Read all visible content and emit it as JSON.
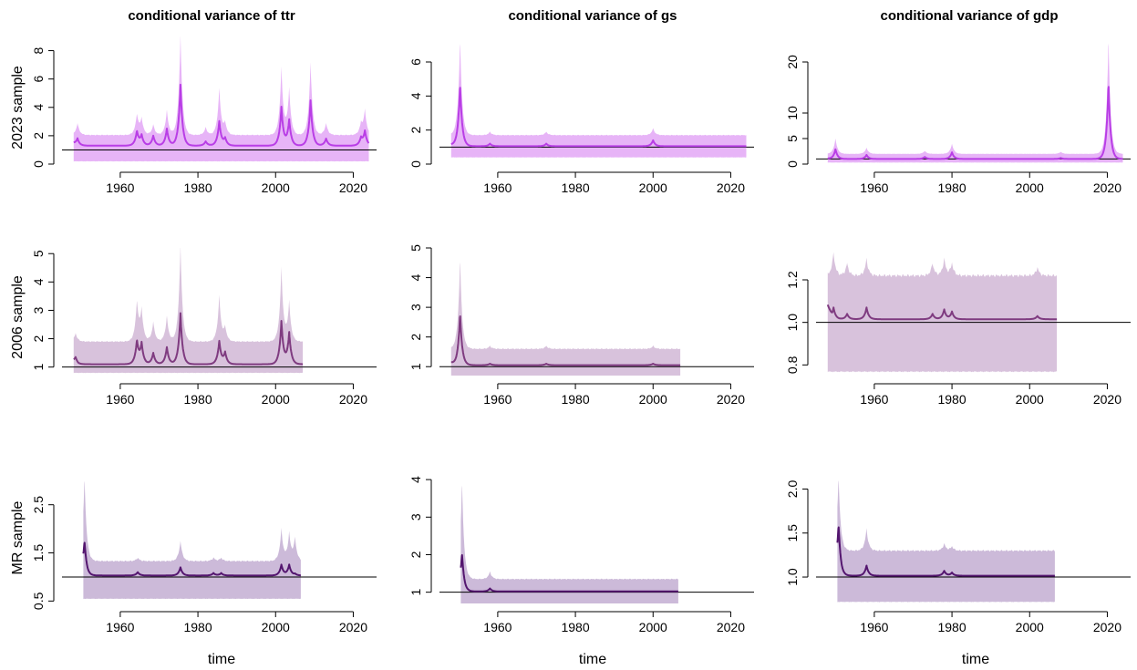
{
  "figure": {
    "column_titles": [
      "conditional variance of  ttr",
      "conditional variance of  gs",
      "conditional variance of  gdp"
    ],
    "row_labels": [
      "2023 sample",
      "2006 sample",
      "MR sample"
    ],
    "xlabel": "time"
  },
  "colors": {
    "2023 sample": {
      "line": "#b93ee6",
      "band": "#e7b4f7"
    },
    "2006 sample": {
      "line": "#7f3b80",
      "band": "#d8c2dc"
    },
    "MR sample": {
      "line": "#54166f",
      "band": "#ccbad9"
    },
    "reference_line": "#000000"
  },
  "chart_data": [
    {
      "id": "ttr-2023",
      "type": "area",
      "title": "conditional variance of  ttr",
      "row": "2023 sample",
      "x_range": [
        1948,
        2024
      ],
      "xlim": [
        1945,
        2026
      ],
      "ylim": [
        0,
        9
      ],
      "yticks": [
        0,
        2,
        4,
        6,
        8
      ],
      "yticklabels": [
        "0",
        "2",
        "4",
        "6",
        "8"
      ],
      "xticks": [
        1960,
        1980,
        2000,
        2020
      ],
      "xticklabels": [
        "1960",
        "1980",
        "2000",
        "2020"
      ],
      "reference_y": 1,
      "baseline": 1.3,
      "band_upper": 2.05,
      "band_lower": 0.2,
      "peaks": [
        [
          1949,
          1.8,
          2.9
        ],
        [
          1964.3,
          2.3,
          3.5
        ],
        [
          1965.5,
          2.0,
          3.2
        ],
        [
          1968.5,
          2.0,
          2.8
        ],
        [
          1972,
          2.5,
          3.8
        ],
        [
          1975.5,
          5.6,
          9.1
        ],
        [
          1982,
          1.6,
          2.6
        ],
        [
          1985.5,
          3.0,
          5.3
        ],
        [
          1987,
          1.8,
          2.9
        ],
        [
          2001.5,
          4.0,
          6.8
        ],
        [
          2003.5,
          3.1,
          5.3
        ],
        [
          2009,
          4.5,
          7.2
        ],
        [
          2013,
          1.8,
          2.9
        ],
        [
          2022,
          1.8,
          2.8
        ],
        [
          2023,
          2.3,
          3.8
        ]
      ],
      "series": [
        {
          "name": "",
          "kind": "median",
          "color": "#b93ee6"
        }
      ]
    },
    {
      "id": "gs-2023",
      "type": "area",
      "title": "conditional variance of  gs",
      "row": "2023 sample",
      "x_range": [
        1948,
        2024
      ],
      "xlim": [
        1945,
        2026
      ],
      "ylim": [
        0,
        7.5
      ],
      "yticks": [
        0,
        2,
        4,
        6
      ],
      "yticklabels": [
        "0",
        "2",
        "4",
        "6"
      ],
      "xticks": [
        1960,
        1980,
        2000,
        2020
      ],
      "xticklabels": [
        "1960",
        "1980",
        "2000",
        "2020"
      ],
      "reference_y": 1,
      "baseline": 1.05,
      "band_upper": 1.7,
      "band_lower": 0.4,
      "peaks": [
        [
          1950.3,
          4.7,
          7.4
        ],
        [
          1958,
          1.2,
          1.9
        ],
        [
          1972.5,
          1.2,
          1.9
        ],
        [
          2000,
          1.4,
          2.1
        ]
      ],
      "series": [
        {
          "name": "",
          "kind": "median",
          "color": "#b93ee6"
        }
      ]
    },
    {
      "id": "gdp-2023",
      "type": "area",
      "title": "conditional variance of  gdp",
      "row": "2023 sample",
      "x_range": [
        1948,
        2024
      ],
      "xlim": [
        1945,
        2026
      ],
      "ylim": [
        0,
        25
      ],
      "yticks": [
        0,
        5,
        10,
        20
      ],
      "yticklabels": [
        "0",
        "5",
        "10",
        "20"
      ],
      "xticks": [
        1960,
        1980,
        2000,
        2020
      ],
      "xticklabels": [
        "1960",
        "1980",
        "2000",
        "2020"
      ],
      "reference_y": 1,
      "baseline": 1.0,
      "band_upper": 2.0,
      "band_lower": 0.3,
      "peaks": [
        [
          1950,
          2.9,
          5.0
        ],
        [
          1958,
          1.8,
          3.2
        ],
        [
          1973,
          1.4,
          2.6
        ],
        [
          1980,
          2.3,
          4.0
        ],
        [
          2008,
          1.2,
          2.4
        ],
        [
          2020.3,
          16.0,
          25.0
        ]
      ],
      "series": [
        {
          "name": "",
          "kind": "median",
          "color": "#b93ee6"
        }
      ]
    },
    {
      "id": "ttr-2006",
      "type": "area",
      "title": "conditional variance of  ttr",
      "row": "2006 sample",
      "x_range": [
        1948,
        2007
      ],
      "xlim": [
        1945,
        2026
      ],
      "ylim": [
        0.7,
        5.2
      ],
      "yticks": [
        1,
        2,
        3,
        4,
        5
      ],
      "yticklabels": [
        "1",
        "2",
        "3",
        "4",
        "5"
      ],
      "xticks": [
        1960,
        1980,
        2000,
        2020
      ],
      "xticklabels": [
        "1960",
        "1980",
        "2000",
        "2020"
      ],
      "reference_y": 1,
      "baseline": 1.1,
      "band_upper": 1.9,
      "band_lower": 0.8,
      "peaks": [
        [
          1948.5,
          1.3,
          2.2
        ],
        [
          1964.3,
          1.9,
          3.3
        ],
        [
          1965.5,
          1.8,
          3.0
        ],
        [
          1968.5,
          1.5,
          2.6
        ],
        [
          1972,
          1.7,
          2.8
        ],
        [
          1975.5,
          2.9,
          5.3
        ],
        [
          1985.5,
          1.9,
          3.5
        ],
        [
          1987,
          1.5,
          2.4
        ],
        [
          2001.5,
          2.6,
          4.5
        ],
        [
          2003.5,
          2.2,
          3.3
        ]
      ],
      "series": [
        {
          "name": "",
          "kind": "median",
          "color": "#7f3b80"
        }
      ]
    },
    {
      "id": "gs-2006",
      "type": "area",
      "title": "conditional variance of  gs",
      "row": "2006 sample",
      "x_range": [
        1948,
        2007
      ],
      "xlim": [
        1945,
        2026
      ],
      "ylim": [
        0.7,
        5.0
      ],
      "yticks": [
        1,
        2,
        3,
        4,
        5
      ],
      "yticklabels": [
        "1",
        "2",
        "3",
        "4",
        "5"
      ],
      "xticks": [
        1960,
        1980,
        2000,
        2020
      ],
      "xticklabels": [
        "1960",
        "1980",
        "2000",
        "2020"
      ],
      "reference_y": 1,
      "baseline": 1.05,
      "band_upper": 1.6,
      "band_lower": 0.5,
      "peaks": [
        [
          1950.3,
          2.8,
          4.7
        ],
        [
          1958,
          1.1,
          1.7
        ],
        [
          1972.5,
          1.1,
          1.7
        ],
        [
          2000,
          1.1,
          1.7
        ]
      ],
      "series": [
        {
          "name": "",
          "kind": "median",
          "color": "#7f3b80"
        }
      ]
    },
    {
      "id": "gdp-2006",
      "type": "area",
      "title": "conditional variance of  gdp",
      "row": "2006 sample",
      "x_range": [
        1948,
        2007
      ],
      "xlim": [
        1945,
        2026
      ],
      "ylim": [
        0.75,
        1.35
      ],
      "yticks": [
        0.8,
        1.0,
        1.2
      ],
      "yticklabels": [
        "0.8",
        "1.0",
        "1.2"
      ],
      "xticks": [
        1960,
        1980,
        2000,
        2020
      ],
      "xticklabels": [
        "1960",
        "1980",
        "2000",
        "2020"
      ],
      "reference_y": 1,
      "baseline": 1.015,
      "band_upper": 1.22,
      "band_lower": 0.77,
      "peaks": [
        [
          1949.5,
          1.07,
          1.33
        ],
        [
          1953,
          1.04,
          1.28
        ],
        [
          1958,
          1.07,
          1.3
        ],
        [
          1975,
          1.04,
          1.28
        ],
        [
          1978,
          1.06,
          1.3
        ],
        [
          1980,
          1.05,
          1.28
        ],
        [
          2002,
          1.03,
          1.26
        ]
      ],
      "series": [
        {
          "name": "",
          "kind": "median",
          "color": "#7f3b80"
        }
      ]
    },
    {
      "id": "ttr-mr",
      "type": "area",
      "title": "conditional variance of  ttr",
      "row": "MR sample",
      "x_range": [
        1950.5,
        2006.5
      ],
      "xlim": [
        1945,
        2026
      ],
      "ylim": [
        0.45,
        3.1
      ],
      "yticks": [
        0.5,
        1.5,
        2.5
      ],
      "yticklabels": [
        "0.5",
        "1.5",
        "2.5"
      ],
      "xticks": [
        1960,
        1980,
        2000,
        2020
      ],
      "xticklabels": [
        "1960",
        "1980",
        "2000",
        "2020"
      ],
      "reference_y": 1,
      "baseline": 1.03,
      "band_upper": 1.33,
      "band_lower": 0.55,
      "peaks": [
        [
          1950.8,
          1.7,
          3.1
        ],
        [
          1964.5,
          1.1,
          1.4
        ],
        [
          1975.5,
          1.2,
          1.75
        ],
        [
          1984,
          1.08,
          1.4
        ],
        [
          1986,
          1.08,
          1.4
        ],
        [
          2001.5,
          1.25,
          2.0
        ],
        [
          2003.5,
          1.25,
          1.9
        ],
        [
          2005,
          1.06,
          1.8
        ]
      ],
      "series": [
        {
          "name": "",
          "kind": "median",
          "color": "#54166f"
        }
      ]
    },
    {
      "id": "gs-mr",
      "type": "area",
      "title": "conditional variance of  gs",
      "row": "MR sample",
      "x_range": [
        1950.5,
        2006.5
      ],
      "xlim": [
        1945,
        2026
      ],
      "ylim": [
        0.7,
        4.1
      ],
      "yticks": [
        1,
        2,
        3,
        4
      ],
      "yticklabels": [
        "1",
        "2",
        "3",
        "4"
      ],
      "xticks": [
        1960,
        1980,
        2000,
        2020
      ],
      "xticklabels": [
        "1960",
        "1980",
        "2000",
        "2020"
      ],
      "reference_y": 1,
      "baseline": 1.02,
      "band_upper": 1.35,
      "band_lower": 0.6,
      "peaks": [
        [
          1950.8,
          2.0,
          4.0
        ],
        [
          1958,
          1.1,
          1.55
        ]
      ],
      "series": [
        {
          "name": "",
          "kind": "median",
          "color": "#54166f"
        }
      ]
    },
    {
      "id": "gdp-mr",
      "type": "area",
      "title": "conditional variance of  gdp",
      "row": "MR sample",
      "x_range": [
        1950.5,
        2006.5
      ],
      "xlim": [
        1945,
        2026
      ],
      "ylim": [
        0.7,
        2.15
      ],
      "yticks": [
        1.0,
        1.5,
        2.0
      ],
      "yticklabels": [
        "1.0",
        "1.5",
        "2.0"
      ],
      "xticks": [
        1960,
        1980,
        2000,
        2020
      ],
      "xticklabels": [
        "1960",
        "1980",
        "2000",
        "2020"
      ],
      "reference_y": 1,
      "baseline": 1.015,
      "band_upper": 1.3,
      "band_lower": 0.72,
      "peaks": [
        [
          1950.8,
          1.55,
          2.15
        ],
        [
          1958,
          1.13,
          1.55
        ],
        [
          1978,
          1.07,
          1.38
        ],
        [
          1980,
          1.05,
          1.35
        ]
      ],
      "series": [
        {
          "name": "",
          "kind": "median",
          "color": "#54166f"
        }
      ]
    }
  ]
}
